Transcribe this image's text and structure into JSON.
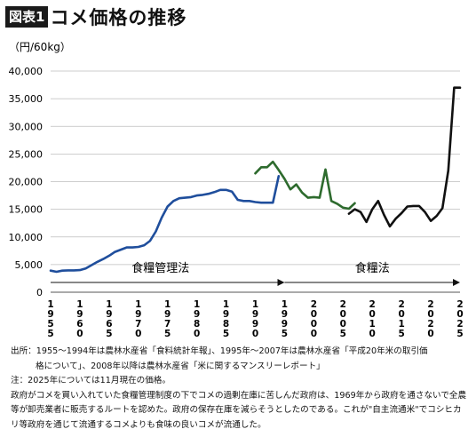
{
  "figure": {
    "tag": "図表1",
    "title": "コメ価格の推移"
  },
  "chart_data": {
    "type": "line",
    "ylabel": "（円/60kg）",
    "ylim": [
      0,
      40000
    ],
    "yticks": [
      "0",
      "5,000",
      "10,000",
      "15,000",
      "20,000",
      "25,000",
      "30,000",
      "35,000",
      "40,000"
    ],
    "ytick_values": [
      0,
      5000,
      10000,
      15000,
      20000,
      25000,
      30000,
      35000,
      40000
    ],
    "xlim": [
      1955,
      2025
    ],
    "xticks": [
      "1955",
      "1960",
      "1965",
      "1970",
      "1975",
      "1980",
      "1985",
      "1990",
      "1995",
      "2000",
      "2005",
      "2010",
      "2015",
      "2020",
      "2025"
    ],
    "xtick_values": [
      1955,
      1960,
      1965,
      1970,
      1975,
      1980,
      1985,
      1990,
      1995,
      2000,
      2005,
      2010,
      2015,
      2020,
      2025
    ],
    "grid": "horizontal",
    "series": [
      {
        "color": "#1f4e9c",
        "x": [
          1955,
          1956,
          1957,
          1958,
          1959,
          1960,
          1961,
          1962,
          1963,
          1964,
          1965,
          1966,
          1967,
          1968,
          1969,
          1970,
          1971,
          1972,
          1973,
          1974,
          1975,
          1976,
          1977,
          1978,
          1979,
          1980,
          1981,
          1982,
          1983,
          1984,
          1985,
          1986,
          1987,
          1988,
          1989,
          1990,
          1991,
          1992,
          1993,
          1994
        ],
        "values": [
          3900,
          3700,
          3900,
          3950,
          3950,
          4000,
          4300,
          4900,
          5500,
          6000,
          6600,
          7300,
          7700,
          8100,
          8100,
          8200,
          8500,
          9300,
          11000,
          13500,
          15500,
          16500,
          17000,
          17100,
          17200,
          17500,
          17600,
          17800,
          18100,
          18500,
          18500,
          18200,
          16700,
          16500,
          16500,
          16300,
          16200,
          16200,
          16200,
          21000
        ]
      },
      {
        "color": "#2e6b2e",
        "x": [
          1990,
          1991,
          1992,
          1993,
          1994,
          1995,
          1996,
          1997,
          1998,
          1999,
          2000,
          2001,
          2002,
          2003,
          2004,
          2005,
          2006,
          2007
        ],
        "values": [
          21500,
          22600,
          22600,
          23600,
          22100,
          20500,
          18600,
          19500,
          18000,
          17100,
          17200,
          17100,
          22200,
          16500,
          16000,
          15300,
          15100,
          16100
        ]
      },
      {
        "color": "#111111",
        "x": [
          2006,
          2007,
          2008,
          2009,
          2010,
          2011,
          2012,
          2013,
          2014,
          2015,
          2016,
          2017,
          2018,
          2019,
          2020,
          2021,
          2022,
          2023,
          2024,
          2025
        ],
        "values": [
          14200,
          15000,
          14500,
          12700,
          15000,
          16500,
          14000,
          11900,
          13300,
          14300,
          15500,
          15600,
          15600,
          14500,
          12900,
          13800,
          15200,
          22000,
          37000,
          37000
        ]
      }
    ],
    "periods": [
      {
        "label": "食糧管理法",
        "from": 1955,
        "to": 1995
      },
      {
        "label": "食糧法",
        "from": 1995,
        "to": 2025
      }
    ]
  },
  "notes": {
    "source_1": "出所：1955〜1994年は農林水産省「食料統計年報」、1995年〜2007年は農林水産省「平成20年米の取引価",
    "source_2": "格について」、2008年以降は農林水産省「米に関するマンスリーレポート」",
    "note": "注：2025年については11月現在の価格。",
    "desc_1": "政府がコメを買い入れていた食糧管理制度の下でコメの過剰在庫に苦しんだ政府は、1969年から政府を通さないで全農",
    "desc_2": "等が卸売業者に販売するルートを認めた。政府の保存在庫を減らそうとしたのである。これが\"自主流通米\"でコシヒカ",
    "desc_3": "リ等政府を通じて流通するコメよりも食味の良いコメが流通した。"
  }
}
